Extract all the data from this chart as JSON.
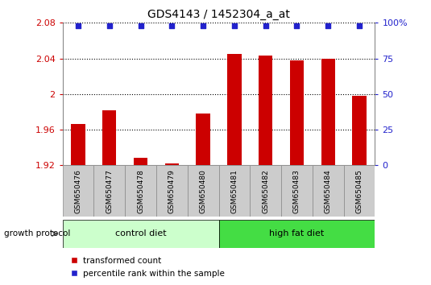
{
  "title": "GDS4143 / 1452304_a_at",
  "samples": [
    "GSM650476",
    "GSM650477",
    "GSM650478",
    "GSM650479",
    "GSM650480",
    "GSM650481",
    "GSM650482",
    "GSM650483",
    "GSM650484",
    "GSM650485"
  ],
  "bar_values": [
    1.966,
    1.982,
    1.928,
    1.922,
    1.978,
    2.045,
    2.043,
    2.038,
    2.04,
    1.998
  ],
  "percentile_values": [
    98,
    98,
    98,
    98,
    98,
    98,
    98,
    98,
    98,
    98
  ],
  "bar_color": "#cc0000",
  "dot_color": "#2222cc",
  "ylim_left": [
    1.92,
    2.08
  ],
  "ylim_right": [
    0,
    100
  ],
  "yticks_left": [
    1.92,
    1.96,
    2.0,
    2.04,
    2.08
  ],
  "ytick_labels_left": [
    "1.92",
    "1.96",
    "2",
    "2.04",
    "2.08"
  ],
  "yticks_right": [
    0,
    25,
    50,
    75,
    100
  ],
  "ytick_labels_right": [
    "0",
    "25",
    "50",
    "75",
    "100%"
  ],
  "groups": [
    {
      "label": "control diet",
      "start": 0,
      "end": 5,
      "color": "#ccffcc",
      "edgecolor": "#000000"
    },
    {
      "label": "high fat diet",
      "start": 5,
      "end": 10,
      "color": "#44dd44",
      "edgecolor": "#000000"
    }
  ],
  "group_label": "growth protocol",
  "legend_bar_label": "transformed count",
  "legend_dot_label": "percentile rank within the sample",
  "bar_axis_color": "#cc0000",
  "pct_axis_color": "#2222cc",
  "dotted_gridlines": [
    1.96,
    2.0,
    2.04
  ],
  "bar_bottom": 1.92,
  "sample_box_color": "#cccccc",
  "sample_box_edge": "#888888",
  "bg_color": "#ffffff"
}
